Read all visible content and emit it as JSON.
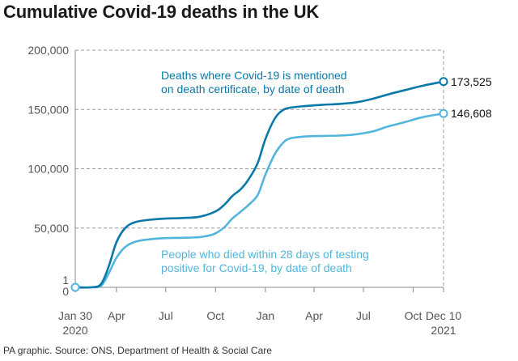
{
  "title": "Cumulative Covid-19 deaths in the UK",
  "footer": "PA graphic. Source: ONS, Department of Health & Social Care",
  "colors": {
    "dark": "#0a78a8",
    "light": "#52b6dc",
    "grid": "#9a9a9a",
    "axis": "#8a8a8a"
  },
  "chart_data": {
    "type": "line",
    "title": "Cumulative Covid-19 deaths in the UK",
    "x_range": [
      "2020-01-30",
      "2021-12-10"
    ],
    "y_range": [
      0,
      200000
    ],
    "grid": true,
    "y_ticks": [
      {
        "label": "200,000",
        "value": 200000
      },
      {
        "label": "150,000",
        "value": 150000
      },
      {
        "label": "100,000",
        "value": 100000
      },
      {
        "label": "50,000",
        "value": 50000
      },
      {
        "label": "1",
        "value": 1
      },
      {
        "label": "0",
        "value": 0
      }
    ],
    "x_ticks": [
      {
        "label": "Jan 30",
        "label2": "2020",
        "date": "2020-01-30"
      },
      {
        "label": "Apr",
        "date": "2020-04-15"
      },
      {
        "label": "Jul",
        "date": "2020-07-15"
      },
      {
        "label": "Oct",
        "date": "2020-10-15"
      },
      {
        "label": "Jan",
        "date": "2021-01-15"
      },
      {
        "label": "Apr",
        "date": "2021-04-15"
      },
      {
        "label": "Jul",
        "date": "2021-07-15"
      },
      {
        "label": "Oct",
        "date": "2021-10-15"
      },
      {
        "label": "Dec 10",
        "label2": "2021",
        "date": "2021-12-10"
      }
    ],
    "series": [
      {
        "name": "Deaths where Covid-19 is mentioned on death certificate, by date of death",
        "annotation": [
          "Deaths where Covid-19 is mentioned",
          "on death certificate, by date of death"
        ],
        "color": "#0a78a8",
        "end_label": "173,525",
        "points": [
          [
            "2020-01-30",
            0
          ],
          [
            "2020-03-01",
            50
          ],
          [
            "2020-03-18",
            3000
          ],
          [
            "2020-04-01",
            18000
          ],
          [
            "2020-04-15",
            38000
          ],
          [
            "2020-05-01",
            50000
          ],
          [
            "2020-05-20",
            55000
          ],
          [
            "2020-06-15",
            57000
          ],
          [
            "2020-07-15",
            58000
          ],
          [
            "2020-08-15",
            58500
          ],
          [
            "2020-09-15",
            59500
          ],
          [
            "2020-10-15",
            64000
          ],
          [
            "2020-11-01",
            70000
          ],
          [
            "2020-11-15",
            77000
          ],
          [
            "2020-12-01",
            83000
          ],
          [
            "2020-12-15",
            91000
          ],
          [
            "2021-01-01",
            105000
          ],
          [
            "2021-01-15",
            125000
          ],
          [
            "2021-02-01",
            142000
          ],
          [
            "2021-02-15",
            149000
          ],
          [
            "2021-03-01",
            151500
          ],
          [
            "2021-04-01",
            153000
          ],
          [
            "2021-05-01",
            154000
          ],
          [
            "2021-06-01",
            154700
          ],
          [
            "2021-07-01",
            156000
          ],
          [
            "2021-08-01",
            159000
          ],
          [
            "2021-09-01",
            163000
          ],
          [
            "2021-10-01",
            166500
          ],
          [
            "2021-11-01",
            170000
          ],
          [
            "2021-12-10",
            173525
          ]
        ]
      },
      {
        "name": "People who died within 28 days of testing positive for Covid-19, by date of death",
        "annotation": [
          "People who died within 28 days of testing",
          "positive for Covid-19, by date of death"
        ],
        "color": "#52b6dc",
        "end_label": "146,608",
        "points": [
          [
            "2020-01-30",
            0
          ],
          [
            "2020-03-01",
            30
          ],
          [
            "2020-03-18",
            1500
          ],
          [
            "2020-04-01",
            12000
          ],
          [
            "2020-04-15",
            25000
          ],
          [
            "2020-05-01",
            34000
          ],
          [
            "2020-05-20",
            38500
          ],
          [
            "2020-06-15",
            40500
          ],
          [
            "2020-07-15",
            41500
          ],
          [
            "2020-08-15",
            41800
          ],
          [
            "2020-09-15",
            42300
          ],
          [
            "2020-10-01",
            43500
          ],
          [
            "2020-10-15",
            45500
          ],
          [
            "2020-11-01",
            51000
          ],
          [
            "2020-11-15",
            58000
          ],
          [
            "2020-12-01",
            64000
          ],
          [
            "2020-12-15",
            69500
          ],
          [
            "2021-01-01",
            78000
          ],
          [
            "2021-01-15",
            95000
          ],
          [
            "2021-02-01",
            112000
          ],
          [
            "2021-02-15",
            121000
          ],
          [
            "2021-03-01",
            125500
          ],
          [
            "2021-04-01",
            127300
          ],
          [
            "2021-05-01",
            127700
          ],
          [
            "2021-06-01",
            128000
          ],
          [
            "2021-07-01",
            129000
          ],
          [
            "2021-08-01",
            131500
          ],
          [
            "2021-09-01",
            136000
          ],
          [
            "2021-10-01",
            139500
          ],
          [
            "2021-11-01",
            143500
          ],
          [
            "2021-12-10",
            146608
          ]
        ]
      }
    ]
  }
}
